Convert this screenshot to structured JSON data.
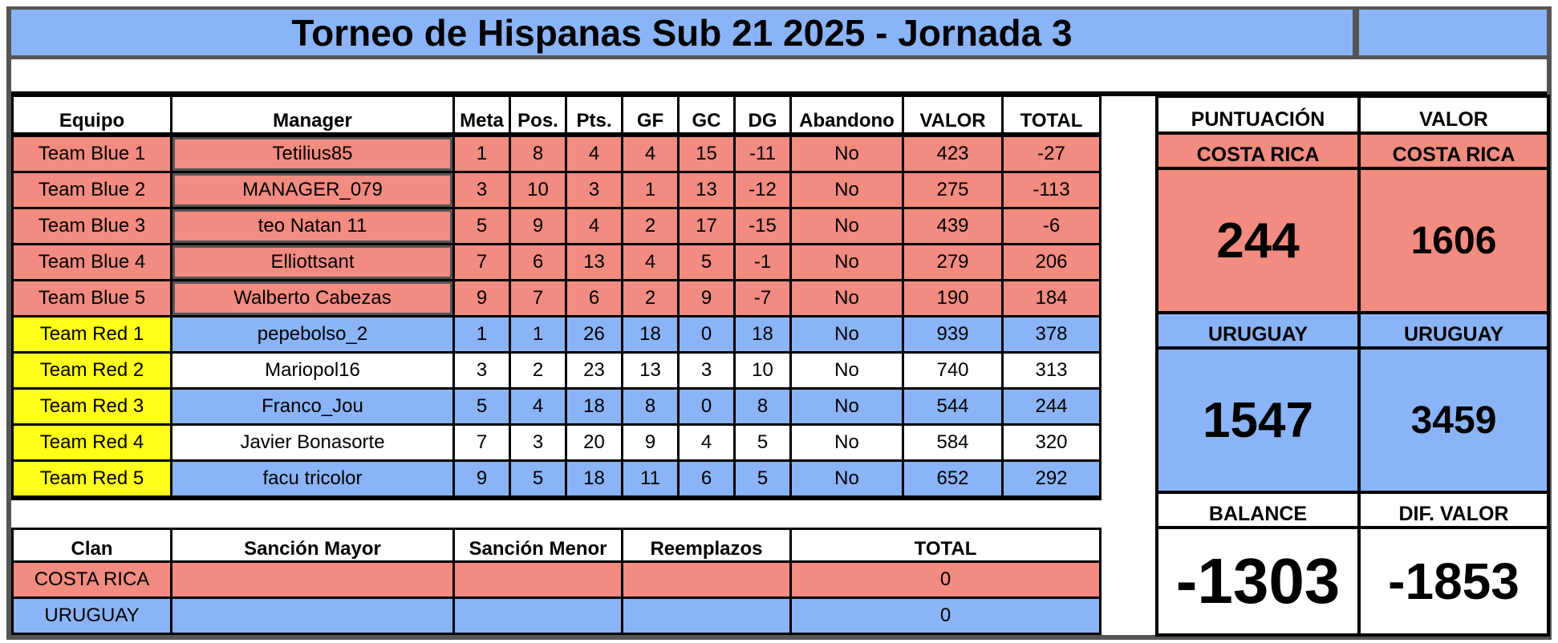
{
  "title": "Torneo de Hispanas Sub 21 2025 - Jornada 3",
  "colors": {
    "red": "#f28b80",
    "blue": "#8bb4f7",
    "yellow": "#ffff1a",
    "border": "#555555"
  },
  "headers": [
    "Equipo",
    "Manager",
    "Meta",
    "Pos.",
    "Pts.",
    "GF",
    "GC",
    "DG",
    "Abandono",
    "VALOR",
    "TOTAL"
  ],
  "rows": [
    {
      "equipo": "Team Blue 1",
      "manager": "Tetilius85",
      "meta": "1",
      "pos": "8",
      "pts": "4",
      "gf": "4",
      "gc": "15",
      "dg": "-11",
      "abandono": "No",
      "valor": "423",
      "total": "-27"
    },
    {
      "equipo": "Team Blue 2",
      "manager": "MANAGER_079",
      "meta": "3",
      "pos": "10",
      "pts": "3",
      "gf": "1",
      "gc": "13",
      "dg": "-12",
      "abandono": "No",
      "valor": "275",
      "total": "-113"
    },
    {
      "equipo": "Team Blue 3",
      "manager": "teo Natan 11",
      "meta": "5",
      "pos": "9",
      "pts": "4",
      "gf": "2",
      "gc": "17",
      "dg": "-15",
      "abandono": "No",
      "valor": "439",
      "total": "-6"
    },
    {
      "equipo": "Team Blue 4",
      "manager": "Elliottsant",
      "meta": "7",
      "pos": "6",
      "pts": "13",
      "gf": "4",
      "gc": "5",
      "dg": "-1",
      "abandono": "No",
      "valor": "279",
      "total": "206"
    },
    {
      "equipo": "Team Blue 5",
      "manager": "Walberto Cabezas",
      "meta": "9",
      "pos": "7",
      "pts": "6",
      "gf": "2",
      "gc": "9",
      "dg": "-7",
      "abandono": "No",
      "valor": "190",
      "total": "184"
    },
    {
      "equipo": "Team Red 1",
      "manager": "pepebolso_2",
      "meta": "1",
      "pos": "1",
      "pts": "26",
      "gf": "18",
      "gc": "0",
      "dg": "18",
      "abandono": "No",
      "valor": "939",
      "total": "378"
    },
    {
      "equipo": "Team Red 2",
      "manager": "Mariopol16",
      "meta": "3",
      "pos": "2",
      "pts": "23",
      "gf": "13",
      "gc": "3",
      "dg": "10",
      "abandono": "No",
      "valor": "740",
      "total": "313"
    },
    {
      "equipo": "Team Red 3",
      "manager": "Franco_Jou",
      "meta": "5",
      "pos": "4",
      "pts": "18",
      "gf": "8",
      "gc": "0",
      "dg": "8",
      "abandono": "No",
      "valor": "544",
      "total": "244"
    },
    {
      "equipo": "Team Red 4",
      "manager": "Javier Bonasorte",
      "meta": "7",
      "pos": "3",
      "pts": "20",
      "gf": "9",
      "gc": "4",
      "dg": "5",
      "abandono": "No",
      "valor": "584",
      "total": "320"
    },
    {
      "equipo": "Team Red 5",
      "manager": "facu tricolor",
      "meta": "9",
      "pos": "5",
      "pts": "18",
      "gf": "11",
      "gc": "6",
      "dg": "5",
      "abandono": "No",
      "valor": "652",
      "total": "292"
    }
  ],
  "lower": {
    "headers": [
      "Clan",
      "Sanción Mayor",
      "Sanción Menor",
      "Reemplazos",
      "TOTAL"
    ],
    "rows": [
      {
        "clan": "COSTA RICA",
        "mayor": "",
        "menor": "",
        "reemplazos": "",
        "total": "0"
      },
      {
        "clan": "URUGUAY",
        "mayor": "",
        "menor": "",
        "reemplazos": "",
        "total": "0"
      }
    ]
  },
  "panel": {
    "puntuacion_label": "PUNTUACIÓN",
    "valor_label": "VALOR",
    "costa_rica": "COSTA RICA",
    "uruguay": "URUGUAY",
    "cr_puntuacion": "244",
    "cr_valor": "1606",
    "uy_puntuacion": "1547",
    "uy_valor": "3459",
    "balance_label": "BALANCE",
    "dif_valor_label": "DIF. VALOR",
    "balance": "-1303",
    "dif_valor": "-1853"
  }
}
